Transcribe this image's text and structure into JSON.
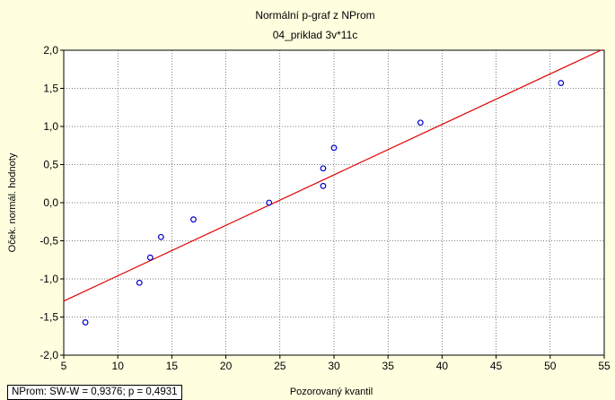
{
  "chart_data": {
    "type": "scatter",
    "title": "Normální p-graf z NProm",
    "subtitle": "04_priklad 3v*11c",
    "xlabel": "Pozorovaný kvantil",
    "ylabel": "Oček. normál. hodnoty",
    "xlim": [
      5,
      55
    ],
    "ylim": [
      -2.0,
      2.0
    ],
    "x_ticks": [
      5,
      10,
      15,
      20,
      25,
      30,
      35,
      40,
      45,
      50,
      55
    ],
    "x_tick_labels": [
      "5",
      "10",
      "15",
      "20",
      "25",
      "30",
      "35",
      "40",
      "45",
      "50",
      "55"
    ],
    "y_ticks": [
      -2.0,
      -1.5,
      -1.0,
      -0.5,
      0.0,
      0.5,
      1.0,
      1.5,
      2.0
    ],
    "y_tick_labels": [
      "-2,0",
      "-1,5",
      "-1,0",
      "-0,5",
      "0,0",
      "0,5",
      "1,0",
      "1,5",
      "2,0"
    ],
    "grid": true,
    "points": [
      {
        "x": 7,
        "y": -1.57
      },
      {
        "x": 12,
        "y": -1.05
      },
      {
        "x": 13,
        "y": -0.72
      },
      {
        "x": 14,
        "y": -0.45
      },
      {
        "x": 17,
        "y": -0.22
      },
      {
        "x": 24,
        "y": 0.0
      },
      {
        "x": 29,
        "y": 0.22
      },
      {
        "x": 29,
        "y": 0.45
      },
      {
        "x": 30,
        "y": 0.72
      },
      {
        "x": 38,
        "y": 1.05
      },
      {
        "x": 51,
        "y": 1.57
      }
    ],
    "fit_line": {
      "x": [
        5,
        55
      ],
      "y": [
        -1.29,
        2.02
      ]
    },
    "colors": {
      "points": "#0000cc",
      "fit_line": "#e00000",
      "background": "#ffffe0",
      "plot_area": "#ffffff"
    }
  },
  "stats": {
    "text": "NProm:  SW-W = 0,9376; p = 0,4931"
  }
}
